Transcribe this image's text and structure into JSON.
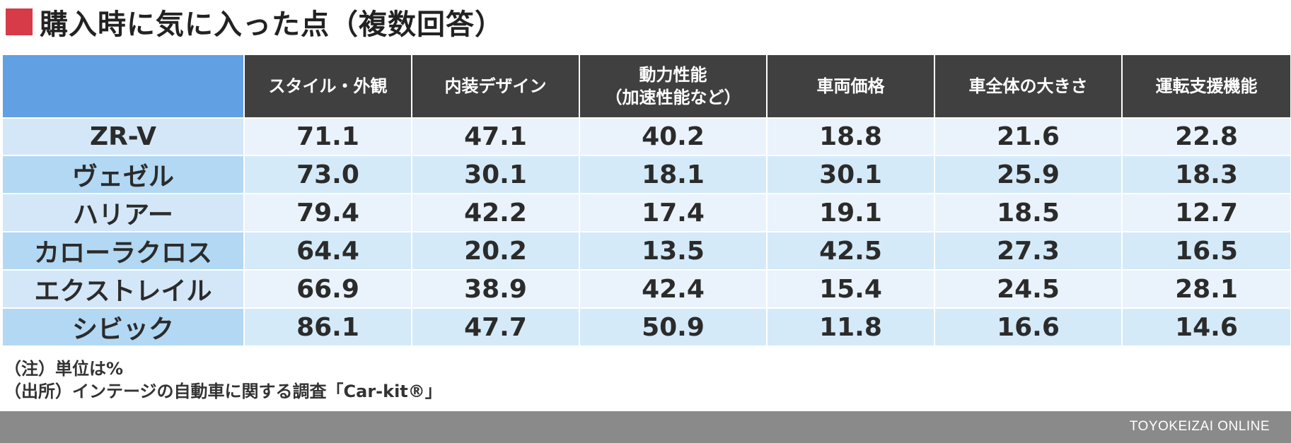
{
  "title": "購入時に気に入った点（複数回答）",
  "colors": {
    "accent": "#d63b47",
    "header_corner": "#62a0e4",
    "header_bg": "#404040",
    "row_head_light": "#d3e7f8",
    "row_head_dark": "#b2d8f3",
    "row_light": "#eaf3fc",
    "row_dark": "#d4eaf8",
    "footer_bg": "#8a8a8a"
  },
  "chart_data": {
    "type": "table",
    "columns": [
      [
        "スタイル・外観"
      ],
      [
        "内装デザイン"
      ],
      [
        "動力性能",
        "（加速性能など）"
      ],
      [
        "車両価格"
      ],
      [
        "車全体の大きさ"
      ],
      [
        "運転支援機能"
      ]
    ],
    "rows": [
      {
        "label": "ZR-V",
        "values": [
          "71.1",
          "47.1",
          "40.2",
          "18.8",
          "21.6",
          "22.8"
        ]
      },
      {
        "label": "ヴェゼル",
        "values": [
          "73.0",
          "30.1",
          "18.1",
          "30.1",
          "25.9",
          "18.3"
        ]
      },
      {
        "label": "ハリアー",
        "values": [
          "79.4",
          "42.2",
          "17.4",
          "19.1",
          "18.5",
          "12.7"
        ]
      },
      {
        "label": "カローラクロス",
        "values": [
          "64.4",
          "20.2",
          "13.5",
          "42.5",
          "27.3",
          "16.5"
        ]
      },
      {
        "label": "エクストレイル",
        "values": [
          "66.9",
          "38.9",
          "42.4",
          "15.4",
          "24.5",
          "28.1"
        ]
      },
      {
        "label": "シビック",
        "values": [
          "86.1",
          "47.7",
          "50.9",
          "11.8",
          "16.6",
          "14.6"
        ]
      }
    ]
  },
  "notes": [
    "（注）単位は%",
    "（出所）インテージの自動車に関する調査「Car-kit®」"
  ],
  "footer": {
    "brand": "TOYOKEIZAI ONLINE"
  }
}
